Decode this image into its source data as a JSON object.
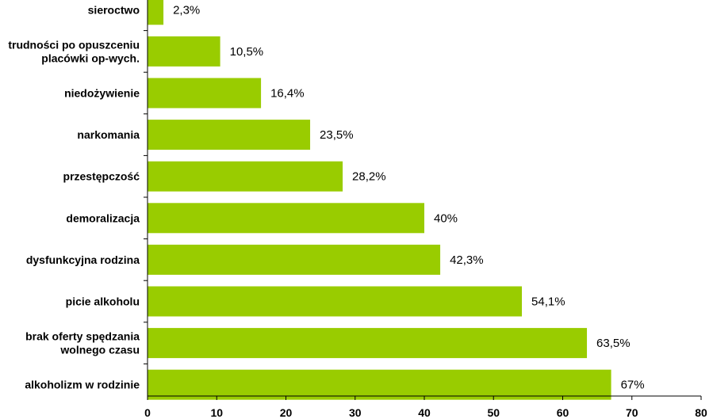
{
  "chart_data": {
    "type": "bar",
    "orientation": "horizontal",
    "categories": [
      "sieroctwo",
      "trudności po opuszceniu placówki op-wych.",
      "niedożywienie",
      "narkomania",
      "przestępczość",
      "demoralizacja",
      "dysfunkcyjna rodzina",
      "picie alkoholu",
      "brak oferty spędzania wolnego czasu",
      "alkoholizm w rodzinie"
    ],
    "category_lines": [
      [
        "sieroctwo"
      ],
      [
        "trudności po opuszceniu",
        "placówki op-wych."
      ],
      [
        "niedożywienie"
      ],
      [
        "narkomania"
      ],
      [
        "przestępczość"
      ],
      [
        "demoralizacja"
      ],
      [
        "dysfunkcyjna rodzina"
      ],
      [
        "picie alkoholu"
      ],
      [
        "brak oferty spędzania",
        "wolnego czasu"
      ],
      [
        "alkoholizm w rodzinie"
      ]
    ],
    "values": [
      2.3,
      10.5,
      16.4,
      23.5,
      28.2,
      40,
      42.3,
      54.1,
      63.5,
      67
    ],
    "value_labels": [
      "2,3%",
      "10,5%",
      "16,4%",
      "23,5%",
      "28,2%",
      "40%",
      "42,3%",
      "54,1%",
      "63,5%",
      "67%"
    ],
    "xlim": [
      0,
      80
    ],
    "xticks": [
      0,
      10,
      20,
      30,
      40,
      50,
      60,
      70,
      80
    ],
    "title": "",
    "xlabel": "",
    "ylabel": "",
    "grid": false,
    "legend": "none",
    "bar_color": "#99CC00",
    "axis_color": "#000000"
  }
}
